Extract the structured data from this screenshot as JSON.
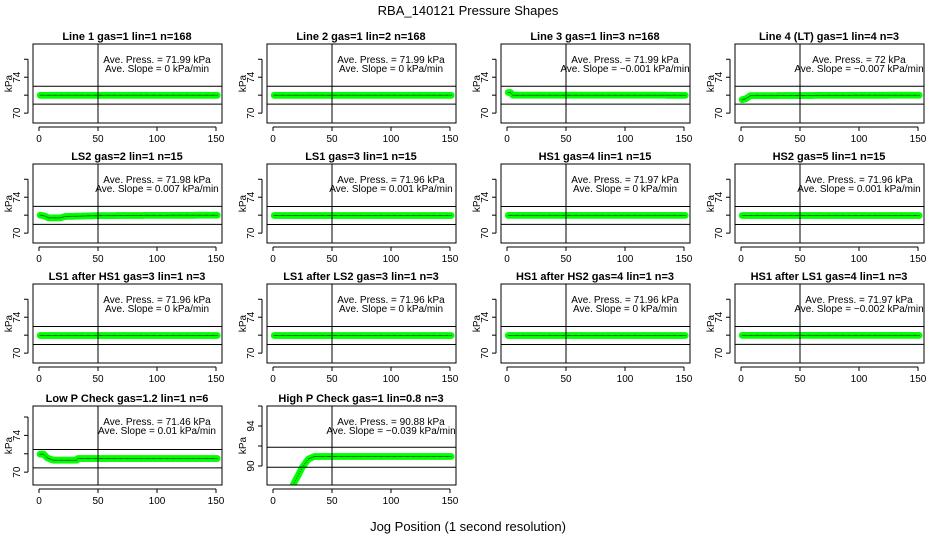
{
  "title": "RBA_140121  Pressure Shapes",
  "xlabel": "Jog Position (1 second resolution)",
  "colors": {
    "marker": "#00ff00",
    "marker_dots": "#003300",
    "lines": "#000000"
  },
  "chart_data": {
    "type": "scatter",
    "grid": false,
    "panels": [
      {
        "title": "Line 1 gas=1 lin=1 n=168",
        "ylabel": "kPa",
        "xlim": [
          0,
          151
        ],
        "ylim": [
          68.9,
          77.7
        ],
        "xticks": [
          0,
          50,
          100,
          150
        ],
        "yticks": [
          70,
          72,
          74,
          76
        ],
        "ytick_labels": [
          "70",
          "",
          "74",
          ""
        ],
        "vline": 50,
        "hlines": [
          73,
          71
        ],
        "ann1": "Ave. Press. =  71.99  kPa",
        "ann2": "Ave. Slope =  0  kPa/min",
        "shape": [
          [
            1,
            71.99
          ],
          [
            151,
            71.99
          ]
        ]
      },
      {
        "title": "Line 2 gas=1 lin=2 n=168",
        "ylabel": "kPa",
        "xlim": [
          0,
          151
        ],
        "ylim": [
          68.9,
          77.7
        ],
        "xticks": [
          0,
          50,
          100,
          150
        ],
        "yticks": [
          70,
          72,
          74,
          76
        ],
        "ytick_labels": [
          "70",
          "",
          "74",
          ""
        ],
        "vline": 50,
        "hlines": [
          73,
          71
        ],
        "ann1": "Ave. Press. =  71.99  kPa",
        "ann2": "Ave. Slope =  0  kPa/min",
        "shape": [
          [
            1,
            71.99
          ],
          [
            151,
            71.99
          ]
        ]
      },
      {
        "title": "Line 3 gas=1 lin=3 n=168",
        "ylabel": "kPa",
        "xlim": [
          0,
          151
        ],
        "ylim": [
          68.9,
          77.7
        ],
        "xticks": [
          0,
          50,
          100,
          150
        ],
        "yticks": [
          70,
          72,
          74,
          76
        ],
        "ytick_labels": [
          "70",
          "",
          "74",
          ""
        ],
        "vline": 50,
        "hlines": [
          73,
          71
        ],
        "ann1": "Ave. Press. =  71.99  kPa",
        "ann2": "Ave. Slope =  −0.001  kPa/min",
        "shape": [
          [
            1,
            72.3
          ],
          [
            3,
            72.3
          ],
          [
            5,
            72.0
          ],
          [
            151,
            71.99
          ]
        ]
      },
      {
        "title": "Line 4 (LT) gas=1 lin=4 n=3",
        "ylabel": "kPa",
        "xlim": [
          0,
          151
        ],
        "ylim": [
          68.9,
          77.7
        ],
        "xticks": [
          0,
          50,
          100,
          150
        ],
        "yticks": [
          70,
          72,
          74,
          76
        ],
        "ytick_labels": [
          "70",
          "",
          "74",
          ""
        ],
        "vline": 50,
        "hlines": [
          73,
          71
        ],
        "ann1": "Ave. Press. =  72  kPa",
        "ann2": "Ave. Slope =  −0.007  kPa/min",
        "shape": [
          [
            1,
            71.5
          ],
          [
            4,
            71.6
          ],
          [
            8,
            71.95
          ],
          [
            151,
            72
          ]
        ]
      },
      {
        "title": "LS2 gas=2 lin=1 n=15",
        "ylabel": "kPa",
        "xlim": [
          0,
          151
        ],
        "ylim": [
          68.9,
          77.7
        ],
        "xticks": [
          0,
          50,
          100,
          150
        ],
        "yticks": [
          70,
          72,
          74,
          76
        ],
        "ytick_labels": [
          "70",
          "",
          "74",
          ""
        ],
        "vline": 50,
        "hlines": [
          72.98,
          70.98
        ],
        "ann1": "Ave. Press. =  71.98  kPa",
        "ann2": "Ave. Slope =  0.007  kPa/min",
        "shape": [
          [
            1,
            72
          ],
          [
            5,
            71.9
          ],
          [
            8,
            71.7
          ],
          [
            18,
            71.7
          ],
          [
            22,
            71.85
          ],
          [
            50,
            71.95
          ],
          [
            151,
            72
          ]
        ]
      },
      {
        "title": "LS1 gas=3 lin=1 n=15",
        "ylabel": "kPa",
        "xlim": [
          0,
          151
        ],
        "ylim": [
          68.9,
          77.7
        ],
        "xticks": [
          0,
          50,
          100,
          150
        ],
        "yticks": [
          70,
          72,
          74,
          76
        ],
        "ytick_labels": [
          "70",
          "",
          "74",
          ""
        ],
        "vline": 50,
        "hlines": [
          72.96,
          70.96
        ],
        "ann1": "Ave. Press. =  71.96  kPa",
        "ann2": "Ave. Slope =  0.001  kPa/min",
        "shape": [
          [
            1,
            71.96
          ],
          [
            151,
            71.96
          ]
        ]
      },
      {
        "title": "HS1 gas=4 lin=1 n=15",
        "ylabel": "kPa",
        "xlim": [
          0,
          151
        ],
        "ylim": [
          68.9,
          77.7
        ],
        "xticks": [
          0,
          50,
          100,
          150
        ],
        "yticks": [
          70,
          72,
          74,
          76
        ],
        "ytick_labels": [
          "70",
          "",
          "74",
          ""
        ],
        "vline": 50,
        "hlines": [
          72.97,
          70.97
        ],
        "ann1": "Ave. Press. =  71.97  kPa",
        "ann2": "Ave. Slope =  0  kPa/min",
        "shape": [
          [
            1,
            71.97
          ],
          [
            151,
            71.97
          ]
        ]
      },
      {
        "title": "HS2 gas=5 lin=1 n=15",
        "ylabel": "kPa",
        "xlim": [
          0,
          151
        ],
        "ylim": [
          68.9,
          77.7
        ],
        "xticks": [
          0,
          50,
          100,
          150
        ],
        "yticks": [
          70,
          72,
          74,
          76
        ],
        "ytick_labels": [
          "70",
          "",
          "74",
          ""
        ],
        "vline": 50,
        "hlines": [
          72.96,
          70.96
        ],
        "ann1": "Ave. Press. =  71.96  kPa",
        "ann2": "Ave. Slope =  0.001  kPa/min",
        "shape": [
          [
            1,
            71.96
          ],
          [
            151,
            71.96
          ]
        ]
      },
      {
        "title": "LS1 after HS1 gas=3 lin=1 n=3",
        "ylabel": "kPa",
        "xlim": [
          0,
          151
        ],
        "ylim": [
          68.9,
          77.7
        ],
        "xticks": [
          0,
          50,
          100,
          150
        ],
        "yticks": [
          70,
          72,
          74,
          76
        ],
        "ytick_labels": [
          "70",
          "",
          "74",
          ""
        ],
        "vline": 50,
        "hlines": [
          72.96,
          70.96
        ],
        "ann1": "Ave. Press. =  71.96  kPa",
        "ann2": "Ave. Slope =  0  kPa/min",
        "shape": [
          [
            1,
            71.96
          ],
          [
            151,
            71.96
          ]
        ]
      },
      {
        "title": "LS1 after LS2 gas=3 lin=1 n=3",
        "ylabel": "kPa",
        "xlim": [
          0,
          151
        ],
        "ylim": [
          68.9,
          77.7
        ],
        "xticks": [
          0,
          50,
          100,
          150
        ],
        "yticks": [
          70,
          72,
          74,
          76
        ],
        "ytick_labels": [
          "70",
          "",
          "74",
          ""
        ],
        "vline": 50,
        "hlines": [
          72.96,
          70.96
        ],
        "ann1": "Ave. Press. =  71.96  kPa",
        "ann2": "Ave. Slope =  0  kPa/min",
        "shape": [
          [
            1,
            71.96
          ],
          [
            151,
            71.96
          ]
        ]
      },
      {
        "title": "HS1 after HS2 gas=4 lin=1 n=3",
        "ylabel": "kPa",
        "xlim": [
          0,
          151
        ],
        "ylim": [
          68.9,
          77.7
        ],
        "xticks": [
          0,
          50,
          100,
          150
        ],
        "yticks": [
          70,
          72,
          74,
          76
        ],
        "ytick_labels": [
          "70",
          "",
          "74",
          ""
        ],
        "vline": 50,
        "hlines": [
          72.96,
          70.96
        ],
        "ann1": "Ave. Press. =  71.96  kPa",
        "ann2": "Ave. Slope =  0  kPa/min",
        "shape": [
          [
            1,
            71.96
          ],
          [
            151,
            71.96
          ]
        ]
      },
      {
        "title": "HS1 after LS1 gas=4 lin=1 n=3",
        "ylabel": "kPa",
        "xlim": [
          0,
          151
        ],
        "ylim": [
          68.9,
          77.7
        ],
        "xticks": [
          0,
          50,
          100,
          150
        ],
        "yticks": [
          70,
          72,
          74,
          76
        ],
        "ytick_labels": [
          "70",
          "",
          "74",
          ""
        ],
        "vline": 50,
        "hlines": [
          72.97,
          70.97
        ],
        "ann1": "Ave. Press. =  71.97  kPa",
        "ann2": "Ave. Slope =  −0.002  kPa/min",
        "shape": [
          [
            1,
            71.97
          ],
          [
            151,
            71.97
          ]
        ]
      },
      {
        "title": "Low P Check gas=1.2 lin=1 n=6",
        "ylabel": "kPa",
        "xlim": [
          0,
          151
        ],
        "ylim": [
          68.6,
          77.2
        ],
        "xticks": [
          0,
          50,
          100,
          150
        ],
        "yticks": [
          70,
          72,
          74,
          76
        ],
        "ytick_labels": [
          "70",
          "",
          "74",
          ""
        ],
        "vline": 50,
        "hlines": [
          72.46,
          70.46
        ],
        "ann1": "Ave. Press. =  71.46  kPa",
        "ann2": "Ave. Slope =  0.01  kPa/min",
        "shape": [
          [
            1,
            71.95
          ],
          [
            4,
            71.95
          ],
          [
            7,
            71.55
          ],
          [
            12,
            71.3
          ],
          [
            32,
            71.3
          ],
          [
            33,
            71.48
          ],
          [
            151,
            71.48
          ]
        ]
      },
      {
        "title": "High P Check gas=1 lin=0.8 n=3",
        "ylabel": "kPa",
        "xlim": [
          0,
          151
        ],
        "ylim": [
          88.1,
          96
        ],
        "xticks": [
          0,
          50,
          100,
          150
        ],
        "yticks": [
          90,
          92,
          94,
          96
        ],
        "ytick_labels": [
          "90",
          "",
          "94",
          ""
        ],
        "vline": 50,
        "hlines": [
          91.88,
          89.88
        ],
        "ann1": "Ave. Press. =  90.88  kPa",
        "ann2": "Ave. Slope =  −0.039  kPa/min",
        "shape": [
          [
            17,
            88.1
          ],
          [
            25,
            89.9
          ],
          [
            30,
            90.7
          ],
          [
            35,
            90.95
          ],
          [
            151,
            90.95
          ]
        ]
      }
    ]
  }
}
